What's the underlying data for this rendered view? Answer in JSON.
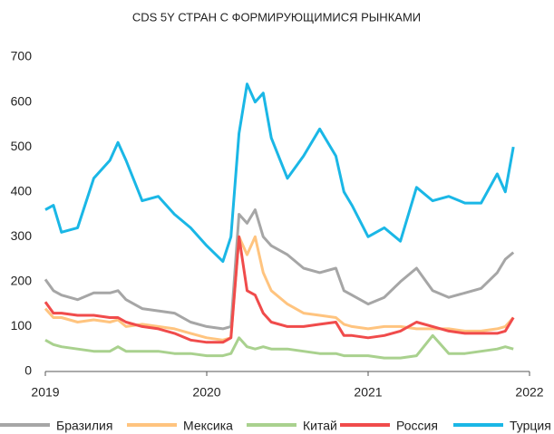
{
  "chart_data": {
    "type": "line",
    "title": "CDS 5Y СТРАН С ФОРМИРУЮЩИМИСЯ РЫНКАМИ",
    "x": [
      2019.0,
      2019.05,
      2019.1,
      2019.2,
      2019.3,
      2019.4,
      2019.45,
      2019.5,
      2019.6,
      2019.7,
      2019.8,
      2019.9,
      2020.0,
      2020.1,
      2020.15,
      2020.2,
      2020.25,
      2020.3,
      2020.35,
      2020.4,
      2020.5,
      2020.6,
      2020.7,
      2020.8,
      2020.85,
      2020.9,
      2021.0,
      2021.1,
      2021.2,
      2021.3,
      2021.4,
      2021.5,
      2021.6,
      2021.7,
      2021.8,
      2021.85,
      2021.9
    ],
    "xlim": [
      2019,
      2022
    ],
    "xticks": [
      2019,
      2020,
      2021,
      2022
    ],
    "ylim": [
      0,
      700
    ],
    "yticks": [
      0,
      100,
      200,
      300,
      400,
      500,
      600,
      700
    ],
    "grid": false,
    "legend": "bottom",
    "series": [
      {
        "name": "Бразилия",
        "color": "#a6a6a6",
        "values": [
          205,
          180,
          170,
          160,
          175,
          175,
          180,
          160,
          140,
          135,
          130,
          110,
          100,
          95,
          100,
          350,
          330,
          360,
          300,
          280,
          260,
          230,
          220,
          230,
          180,
          170,
          150,
          165,
          200,
          230,
          180,
          165,
          175,
          185,
          220,
          250,
          265
        ]
      },
      {
        "name": "Мексика",
        "color": "#ffc47f",
        "values": [
          140,
          120,
          120,
          110,
          115,
          110,
          115,
          100,
          105,
          100,
          95,
          85,
          75,
          70,
          75,
          300,
          260,
          300,
          220,
          180,
          150,
          130,
          125,
          120,
          105,
          100,
          95,
          100,
          100,
          95,
          95,
          95,
          90,
          90,
          95,
          100,
          120
        ]
      },
      {
        "name": "Китай",
        "color": "#a9d18e",
        "values": [
          70,
          60,
          55,
          50,
          45,
          45,
          55,
          45,
          45,
          45,
          40,
          40,
          35,
          35,
          40,
          75,
          55,
          50,
          55,
          50,
          50,
          45,
          40,
          40,
          35,
          35,
          35,
          30,
          30,
          35,
          80,
          40,
          40,
          45,
          50,
          55,
          50
        ]
      },
      {
        "name": "Россия",
        "color": "#f04b4b",
        "values": [
          155,
          130,
          130,
          125,
          125,
          120,
          120,
          110,
          100,
          95,
          85,
          70,
          65,
          65,
          75,
          300,
          180,
          170,
          130,
          110,
          100,
          100,
          105,
          110,
          80,
          80,
          75,
          80,
          90,
          110,
          100,
          90,
          85,
          85,
          85,
          90,
          120
        ]
      },
      {
        "name": "Турция",
        "color": "#1ab7e6",
        "values": [
          360,
          370,
          310,
          320,
          430,
          470,
          510,
          470,
          380,
          390,
          350,
          320,
          280,
          245,
          300,
          530,
          640,
          600,
          620,
          520,
          430,
          480,
          540,
          480,
          400,
          370,
          300,
          320,
          290,
          410,
          380,
          390,
          375,
          375,
          440,
          400,
          500
        ]
      }
    ]
  }
}
